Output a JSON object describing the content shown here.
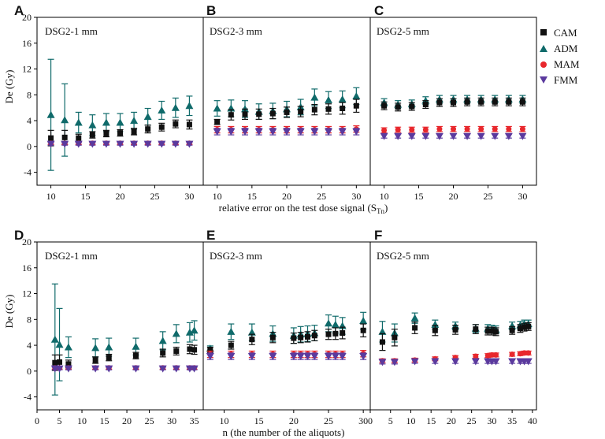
{
  "legend": [
    {
      "key": "CAM",
      "label": "CAM",
      "color": "#111111",
      "marker": "square"
    },
    {
      "key": "ADM",
      "label": "ADM",
      "color": "#0f6a6a",
      "marker": "triangle-up"
    },
    {
      "key": "MAM",
      "label": "MAM",
      "color": "#e8282d",
      "marker": "circle"
    },
    {
      "key": "FMM",
      "label": "FMM",
      "color": "#5b3a9e",
      "marker": "triangle-down"
    }
  ],
  "chart_data": [
    {
      "type": "scatter",
      "row_letters": [
        "A",
        "B",
        "C"
      ],
      "titles": [
        "DSG2-1 mm",
        "DSG2-3 mm",
        "DSG2-5 mm"
      ],
      "ylabel": "De (Gy)",
      "xlabel_main": "relative error on the test dose signal (S",
      "xlabel_sub": "Tn",
      "xlabel_close": ")",
      "ylim": [
        -6,
        20
      ],
      "yticks": [
        "-4",
        "0",
        "4",
        "8",
        "12",
        "16",
        "20"
      ],
      "panels": [
        {
          "xlim": [
            8,
            32
          ],
          "xticks": [
            "10",
            "15",
            "20",
            "25",
            "30"
          ],
          "x": [
            10,
            12,
            14,
            16,
            18,
            20,
            22,
            24,
            26,
            28,
            30
          ],
          "series": {
            "CAM": {
              "values": [
                1.3,
                1.4,
                1.3,
                1.8,
                2.0,
                2.1,
                2.3,
                2.7,
                3.0,
                3.5,
                3.4
              ],
              "err": [
                1.2,
                1.1,
                0.6,
                0.5,
                0.5,
                0.5,
                0.5,
                0.6,
                0.6,
                0.6,
                0.7
              ]
            },
            "ADM": {
              "values": [
                4.9,
                4.1,
                3.7,
                3.3,
                3.7,
                3.7,
                4.0,
                4.6,
                5.6,
                6.0,
                6.3
              ],
              "err": [
                8.6,
                5.6,
                1.6,
                1.6,
                1.4,
                1.4,
                1.3,
                1.3,
                1.4,
                1.5,
                1.5
              ]
            },
            "MAM": {
              "values": [
                0.5,
                0.5,
                0.5,
                0.5,
                0.5,
                0.5,
                0.5,
                0.5,
                0.5,
                0.5,
                0.5
              ],
              "err": [
                0.2,
                0.2,
                0.2,
                0.2,
                0.2,
                0.2,
                0.2,
                0.2,
                0.2,
                0.2,
                0.2
              ]
            },
            "FMM": {
              "values": [
                0.4,
                0.4,
                0.4,
                0.4,
                0.4,
                0.4,
                0.4,
                0.4,
                0.4,
                0.4,
                0.4
              ],
              "err": [
                0.2,
                0.2,
                0.2,
                0.2,
                0.2,
                0.2,
                0.2,
                0.2,
                0.2,
                0.2,
                0.2
              ]
            }
          }
        },
        {
          "xlim": [
            8,
            32
          ],
          "xticks": [
            "10",
            "15",
            "20",
            "25",
            "30"
          ],
          "x": [
            10,
            12,
            14,
            16,
            18,
            20,
            22,
            24,
            26,
            28,
            30
          ],
          "series": {
            "CAM": {
              "values": [
                3.8,
                4.9,
                5.0,
                5.0,
                5.1,
                5.3,
                5.4,
                5.7,
                5.8,
                5.9,
                6.3
              ],
              "err": [
                0.4,
                0.8,
                0.8,
                0.8,
                0.8,
                0.8,
                0.8,
                0.8,
                0.8,
                0.9,
                1.0
              ]
            },
            "ADM": {
              "values": [
                5.9,
                5.9,
                5.8,
                5.4,
                5.5,
                5.8,
                6.1,
                7.6,
                7.2,
                7.3,
                7.8
              ],
              "err": [
                1.2,
                1.3,
                1.3,
                1.2,
                1.2,
                1.2,
                1.2,
                1.3,
                1.3,
                1.3,
                1.3
              ]
            },
            "MAM": {
              "values": [
                2.6,
                2.6,
                2.6,
                2.6,
                2.6,
                2.6,
                2.6,
                2.6,
                2.6,
                2.6,
                2.7
              ],
              "err": [
                0.5,
                0.5,
                0.5,
                0.5,
                0.5,
                0.5,
                0.5,
                0.5,
                0.5,
                0.5,
                0.5
              ]
            },
            "FMM": {
              "values": [
                2.3,
                2.3,
                2.3,
                2.3,
                2.3,
                2.3,
                2.3,
                2.3,
                2.3,
                2.3,
                2.3
              ],
              "err": [
                0.5,
                0.5,
                0.5,
                0.5,
                0.5,
                0.5,
                0.5,
                0.5,
                0.5,
                0.5,
                0.5
              ]
            }
          }
        },
        {
          "xlim": [
            8,
            32
          ],
          "xticks": [
            "10",
            "15",
            "20",
            "25",
            "30"
          ],
          "x": [
            10,
            12,
            14,
            16,
            18,
            20,
            22,
            24,
            26,
            28,
            30
          ],
          "series": {
            "CAM": {
              "values": [
                6.3,
                6.1,
                6.2,
                6.5,
                6.8,
                6.8,
                6.9,
                6.9,
                6.9,
                6.9,
                6.9
              ],
              "err": [
                0.6,
                0.6,
                0.6,
                0.6,
                0.6,
                0.6,
                0.6,
                0.6,
                0.6,
                0.6,
                0.6
              ]
            },
            "ADM": {
              "values": [
                6.8,
                6.5,
                6.6,
                7.1,
                7.3,
                7.3,
                7.3,
                7.3,
                7.3,
                7.3,
                7.3
              ],
              "err": [
                0.6,
                0.6,
                0.6,
                0.6,
                0.6,
                0.6,
                0.6,
                0.6,
                0.6,
                0.6,
                0.6
              ]
            },
            "MAM": {
              "values": [
                2.5,
                2.6,
                2.6,
                2.6,
                2.7,
                2.7,
                2.7,
                2.7,
                2.7,
                2.7,
                2.7
              ],
              "err": [
                0.4,
                0.4,
                0.4,
                0.4,
                0.4,
                0.4,
                0.4,
                0.4,
                0.4,
                0.4,
                0.4
              ]
            },
            "FMM": {
              "values": [
                1.6,
                1.6,
                1.6,
                1.6,
                1.6,
                1.6,
                1.6,
                1.6,
                1.6,
                1.6,
                1.6
              ],
              "err": [
                0.3,
                0.3,
                0.3,
                0.3,
                0.3,
                0.3,
                0.3,
                0.3,
                0.3,
                0.3,
                0.3
              ]
            }
          }
        }
      ]
    },
    {
      "type": "scatter",
      "row_letters": [
        "D",
        "E",
        "F"
      ],
      "titles": [
        "DSG2-1 mm",
        "DSG2-3 mm",
        "DSG2-5 mm"
      ],
      "ylabel": "De (Gy)",
      "xlabel_main": "n (the number of the aliquots)",
      "ylim": [
        -6,
        20
      ],
      "yticks": [
        "-4",
        "0",
        "4",
        "8",
        "12",
        "16",
        "20"
      ],
      "panels": [
        {
          "xlim": [
            0,
            37
          ],
          "xticks": [
            "0",
            "5",
            "10",
            "15",
            "20",
            "25",
            "30",
            "35"
          ],
          "x": [
            4,
            5,
            7,
            13,
            16,
            22,
            28,
            31,
            34,
            35
          ],
          "series": {
            "CAM": {
              "values": [
                1.3,
                1.4,
                1.1,
                1.7,
                2.1,
                2.4,
                2.8,
                3.1,
                3.4,
                3.3
              ],
              "err": [
                1.2,
                1.1,
                0.6,
                0.5,
                0.5,
                0.5,
                0.6,
                0.6,
                0.7,
                0.7
              ]
            },
            "ADM": {
              "values": [
                4.9,
                4.1,
                3.7,
                3.6,
                3.7,
                3.8,
                4.7,
                5.8,
                6.0,
                6.3
              ],
              "err": [
                8.6,
                5.6,
                1.6,
                1.4,
                1.4,
                1.3,
                1.4,
                1.4,
                1.5,
                1.5
              ]
            },
            "MAM": {
              "values": [
                0.5,
                0.5,
                0.5,
                0.5,
                0.5,
                0.5,
                0.5,
                0.5,
                0.5,
                0.5
              ],
              "err": [
                0.2,
                0.2,
                0.2,
                0.2,
                0.2,
                0.2,
                0.2,
                0.2,
                0.2,
                0.2
              ]
            },
            "FMM": {
              "values": [
                0.4,
                0.4,
                0.4,
                0.4,
                0.4,
                0.4,
                0.4,
                0.4,
                0.4,
                0.4
              ],
              "err": [
                0.2,
                0.2,
                0.2,
                0.2,
                0.2,
                0.2,
                0.2,
                0.2,
                0.2,
                0.2
              ]
            }
          }
        },
        {
          "xlim": [
            7,
            31
          ],
          "xticks": [
            "10",
            "15",
            "20",
            "25",
            "30"
          ],
          "x": [
            8,
            11,
            14,
            17,
            20,
            21,
            22,
            23,
            25,
            26,
            27,
            30
          ],
          "series": {
            "CAM": {
              "values": [
                3.3,
                4.0,
                4.9,
                5.2,
                5.1,
                5.2,
                5.3,
                5.5,
                5.7,
                5.8,
                5.9,
                6.3
              ],
              "err": [
                0.4,
                0.6,
                0.8,
                0.8,
                0.8,
                0.8,
                0.8,
                0.8,
                0.8,
                0.9,
                0.9,
                1.0
              ]
            },
            "ADM": {
              "values": [
                3.5,
                6.1,
                6.0,
                5.8,
                5.5,
                5.7,
                5.8,
                5.9,
                7.4,
                7.2,
                7.0,
                7.8
              ],
              "err": [
                0.4,
                1.2,
                1.3,
                1.2,
                1.2,
                1.2,
                1.2,
                1.2,
                1.3,
                1.3,
                1.3,
                1.3
              ]
            },
            "MAM": {
              "values": [
                2.6,
                2.6,
                2.6,
                2.6,
                2.6,
                2.6,
                2.6,
                2.6,
                2.6,
                2.6,
                2.6,
                2.7
              ],
              "err": [
                0.5,
                0.5,
                0.5,
                0.5,
                0.5,
                0.5,
                0.5,
                0.5,
                0.5,
                0.5,
                0.5,
                0.5
              ]
            },
            "FMM": {
              "values": [
                2.3,
                2.3,
                2.3,
                2.3,
                2.3,
                2.3,
                2.3,
                2.3,
                2.3,
                2.3,
                2.3,
                2.3
              ],
              "err": [
                0.5,
                0.5,
                0.5,
                0.5,
                0.5,
                0.5,
                0.5,
                0.5,
                0.5,
                0.5,
                0.5,
                0.5
              ]
            }
          }
        },
        {
          "xlim": [
            0,
            41
          ],
          "xticks": [
            "0",
            "5",
            "10",
            "15",
            "20",
            "25",
            "30",
            "35",
            "40"
          ],
          "x": [
            3,
            6,
            11,
            16,
            21,
            26,
            29,
            30,
            31,
            35,
            37,
            38,
            39
          ],
          "series": {
            "CAM": {
              "values": [
                4.5,
                5.2,
                6.7,
                6.3,
                6.4,
                6.5,
                6.2,
                6.2,
                6.1,
                6.3,
                6.6,
                6.8,
                6.9
              ],
              "err": [
                1.3,
                1.3,
                0.9,
                0.8,
                0.7,
                0.7,
                0.6,
                0.6,
                0.6,
                0.6,
                0.6,
                0.6,
                0.6
              ]
            },
            "ADM": {
              "values": [
                6.1,
                5.9,
                8.2,
                7.2,
                7.0,
                6.6,
                6.6,
                6.5,
                6.4,
                7.0,
                7.1,
                7.3,
                7.3
              ],
              "err": [
                1.6,
                1.4,
                0.8,
                0.7,
                0.6,
                0.6,
                0.6,
                0.6,
                0.6,
                0.6,
                0.6,
                0.6,
                0.6
              ]
            },
            "MAM": {
              "values": [
                1.6,
                1.6,
                1.7,
                1.9,
                2.1,
                2.3,
                2.4,
                2.5,
                2.5,
                2.6,
                2.7,
                2.8,
                2.8
              ],
              "err": [
                0.3,
                0.3,
                0.3,
                0.3,
                0.3,
                0.3,
                0.3,
                0.3,
                0.3,
                0.3,
                0.3,
                0.3,
                0.3
              ]
            },
            "FMM": {
              "values": [
                1.4,
                1.4,
                1.5,
                1.5,
                1.5,
                1.5,
                1.5,
                1.5,
                1.5,
                1.5,
                1.5,
                1.5,
                1.5
              ],
              "err": [
                0.3,
                0.3,
                0.3,
                0.3,
                0.3,
                0.3,
                0.3,
                0.3,
                0.3,
                0.3,
                0.3,
                0.3,
                0.3
              ]
            }
          }
        }
      ]
    }
  ]
}
